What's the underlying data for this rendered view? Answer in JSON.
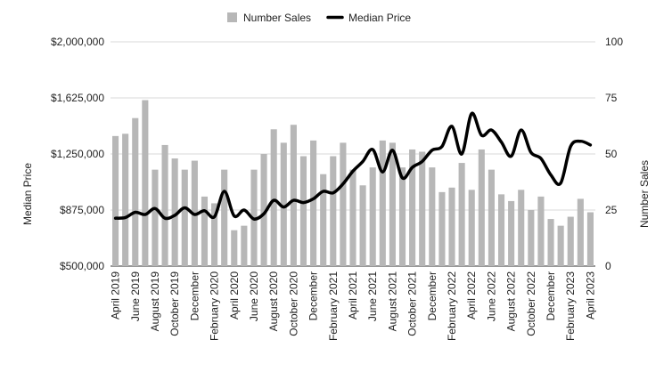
{
  "chart_data": {
    "type": "bar",
    "title": "",
    "legend": {
      "placement": "top-center",
      "items": [
        {
          "label": "Number Sales",
          "marker": "square",
          "color": "#b7b7b7"
        },
        {
          "label": "Median Price",
          "marker": "line",
          "color": "#000000"
        }
      ]
    },
    "ylabel_left": "Median Price",
    "ylabel_right": "Number Sales",
    "ylim_left": [
      500000,
      2000000
    ],
    "ylim_right": [
      0,
      100
    ],
    "left_ticks": [
      "$500,000",
      "$875,000",
      "$1,250,000",
      "$1,625,000",
      "$2,000,000"
    ],
    "right_ticks": [
      "0",
      "25",
      "50",
      "75",
      "100"
    ],
    "grid": true,
    "x_tick_labels": [
      "April 2019",
      "June 2019",
      "August 2019",
      "October 2019",
      "December",
      "February 2020",
      "April 2020",
      "June 2020",
      "August 2020",
      "October 2020",
      "December",
      "February 2021",
      "April 2021",
      "June 2021",
      "August 2021",
      "October 2021",
      "December",
      "February 2022",
      "April 2022",
      "June 2022",
      "August 2022",
      "October 2022",
      "December",
      "February 2023",
      "April 2023"
    ],
    "categories": [
      "Apr 2019",
      "May 2019",
      "Jun 2019",
      "Jul 2019",
      "Aug 2019",
      "Sep 2019",
      "Oct 2019",
      "Nov 2019",
      "Dec 2019",
      "Jan 2020",
      "Feb 2020",
      "Mar 2020",
      "Apr 2020",
      "May 2020",
      "Jun 2020",
      "Jul 2020",
      "Aug 2020",
      "Sep 2020",
      "Oct 2020",
      "Nov 2020",
      "Dec 2020",
      "Jan 2021",
      "Feb 2021",
      "Mar 2021",
      "Apr 2021",
      "May 2021",
      "Jun 2021",
      "Jul 2021",
      "Aug 2021",
      "Sep 2021",
      "Oct 2021",
      "Nov 2021",
      "Dec 2021",
      "Jan 2022",
      "Feb 2022",
      "Mar 2022",
      "Apr 2022",
      "May 2022",
      "Jun 2022",
      "Jul 2022",
      "Aug 2022",
      "Sep 2022",
      "Oct 2022",
      "Nov 2022",
      "Dec 2022",
      "Jan 2023",
      "Feb 2023",
      "Mar 2023",
      "Apr 2023"
    ],
    "series": [
      {
        "name": "Number Sales",
        "type": "bar",
        "axis": "right",
        "color": "#b7b7b7",
        "values": [
          58,
          59,
          66,
          74,
          43,
          54,
          48,
          43,
          47,
          31,
          28,
          43,
          16,
          18,
          43,
          50,
          61,
          55,
          63,
          49,
          56,
          41,
          49,
          55,
          43,
          36,
          44,
          56,
          55,
          44,
          52,
          51,
          44,
          33,
          35,
          46,
          34,
          52,
          43,
          32,
          29,
          34,
          25,
          31,
          21,
          18,
          22,
          30,
          24
        ]
      },
      {
        "name": "Median Price",
        "type": "line",
        "axis": "left",
        "color": "#000000",
        "values": [
          820000,
          825000,
          860000,
          845000,
          885000,
          820000,
          840000,
          890000,
          845000,
          870000,
          830000,
          1000000,
          835000,
          875000,
          815000,
          850000,
          940000,
          895000,
          940000,
          925000,
          950000,
          1000000,
          990000,
          1050000,
          1135000,
          1200000,
          1280000,
          1130000,
          1275000,
          1090000,
          1160000,
          1200000,
          1275000,
          1300000,
          1435000,
          1250000,
          1520000,
          1375000,
          1410000,
          1330000,
          1235000,
          1410000,
          1260000,
          1220000,
          1110000,
          1055000,
          1300000,
          1335000,
          1310000
        ]
      }
    ]
  }
}
